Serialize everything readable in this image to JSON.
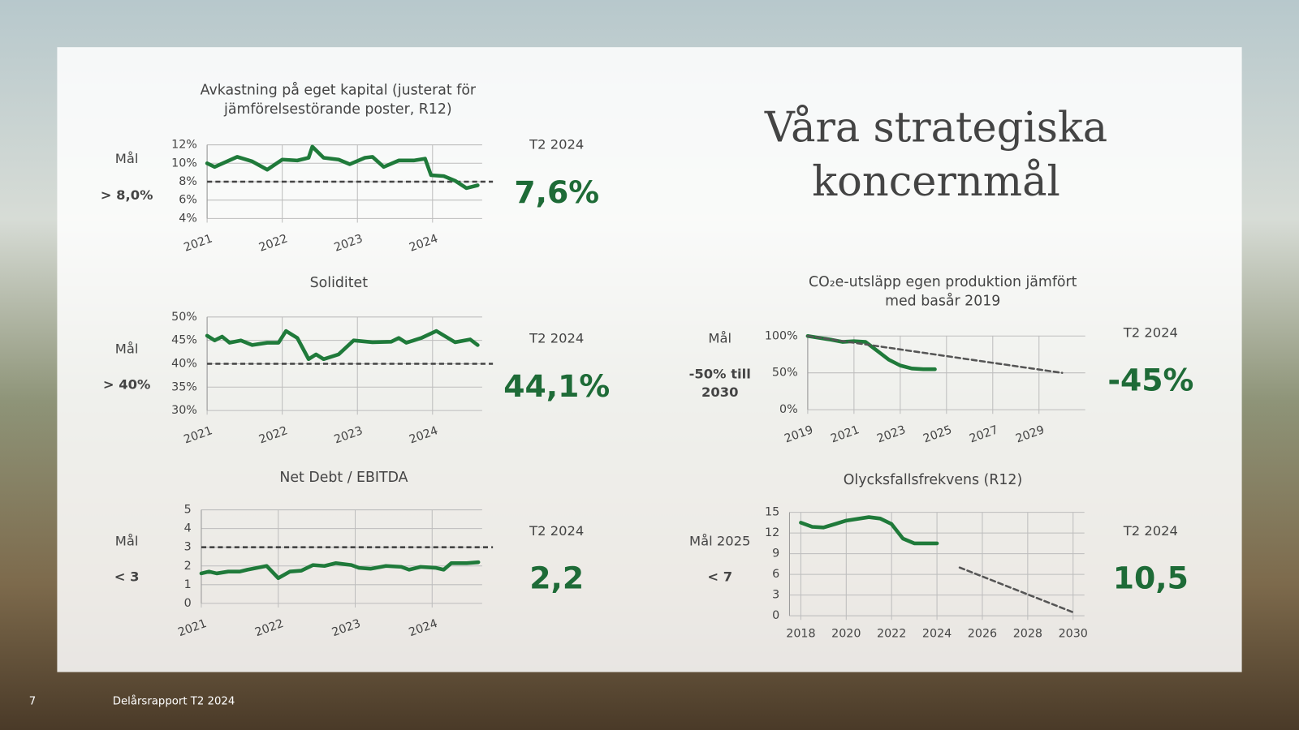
{
  "title": "Våra strategiska koncernmål",
  "footer": {
    "page": "7",
    "text": "Delårsrapport T2 2024"
  },
  "chart_data": [
    {
      "type": "line",
      "title": "Avkastning på eget kapital (justerat för jämförelsestörande poster, R12)",
      "goal_label": "Mål",
      "goal": "> 8,0%",
      "period": "T2 2024",
      "kpi": "7,6%",
      "xlim": [
        2021,
        2024.66
      ],
      "xticks": [
        2021,
        2022,
        2023,
        2024
      ],
      "ylim": [
        4,
        12
      ],
      "yticks": [
        {
          "value": 4,
          "label": "4%"
        },
        {
          "value": 6,
          "label": "6%"
        },
        {
          "value": 8,
          "label": "8%"
        },
        {
          "value": 10,
          "label": "10%"
        },
        {
          "value": 12,
          "label": "12%"
        }
      ],
      "target": 8,
      "series": [
        {
          "color": "#1f7a3a",
          "x": [
            2021.0,
            2021.1,
            2021.4,
            2021.6,
            2021.8,
            2022.0,
            2022.2,
            2022.35,
            2022.4,
            2022.55,
            2022.75,
            2022.9,
            2023.1,
            2023.2,
            2023.35,
            2023.55,
            2023.75,
            2023.9,
            2023.98,
            2024.15,
            2024.3,
            2024.45,
            2024.6
          ],
          "values": [
            10,
            9.6,
            10.7,
            10.2,
            9.3,
            10.4,
            10.3,
            10.6,
            11.8,
            10.6,
            10.4,
            9.9,
            10.6,
            10.7,
            9.6,
            10.3,
            10.3,
            10.5,
            8.7,
            8.6,
            8.1,
            7.3,
            7.6
          ]
        }
      ]
    },
    {
      "type": "line",
      "title": "Soliditet",
      "goal_label": "Mål",
      "goal": "> 40%",
      "period": "T2 2024",
      "kpi": "44,1%",
      "xlim": [
        2021,
        2024.66
      ],
      "xticks": [
        2021,
        2022,
        2023,
        2024
      ],
      "ylim": [
        30,
        50
      ],
      "yticks": [
        {
          "value": 30,
          "label": "30%"
        },
        {
          "value": 35,
          "label": "35%"
        },
        {
          "value": 40,
          "label": "40%"
        },
        {
          "value": 45,
          "label": "45%"
        },
        {
          "value": 50,
          "label": "50%"
        }
      ],
      "target": 40,
      "series": [
        {
          "color": "#1f7a3a",
          "x": [
            2021.0,
            2021.1,
            2021.2,
            2021.3,
            2021.45,
            2021.6,
            2021.8,
            2021.95,
            2022.05,
            2022.2,
            2022.35,
            2022.45,
            2022.55,
            2022.75,
            2022.95,
            2023.2,
            2023.45,
            2023.55,
            2023.65,
            2023.85,
            2024.05,
            2024.3,
            2024.5,
            2024.6
          ],
          "values": [
            46,
            45,
            45.8,
            44.5,
            45,
            44,
            44.5,
            44.5,
            47,
            45.5,
            41,
            42,
            41,
            42,
            45,
            44.6,
            44.7,
            45.5,
            44.5,
            45.5,
            47,
            44.6,
            45.2,
            44
          ]
        }
      ]
    },
    {
      "type": "line",
      "title": "Net Debt / EBITDA",
      "goal_label": "Mål",
      "goal": "< 3",
      "period": "T2 2024",
      "kpi": "2,2",
      "xlim": [
        2021,
        2024.65
      ],
      "xticks": [
        2021,
        2022,
        2023,
        2024
      ],
      "ylim": [
        0,
        5
      ],
      "yticks": [
        0,
        1,
        2,
        3,
        4,
        5
      ],
      "target": 3,
      "series": [
        {
          "color": "#1f7a3a",
          "x": [
            2021.0,
            2021.1,
            2021.2,
            2021.35,
            2021.5,
            2021.6,
            2021.85,
            2022.0,
            2022.15,
            2022.3,
            2022.45,
            2022.6,
            2022.75,
            2022.95,
            2023.05,
            2023.2,
            2023.4,
            2023.6,
            2023.7,
            2023.85,
            2024.05,
            2024.15,
            2024.25,
            2024.45,
            2024.6
          ],
          "values": [
            1.6,
            1.7,
            1.6,
            1.7,
            1.7,
            1.8,
            2.0,
            1.35,
            1.7,
            1.75,
            2.05,
            2.0,
            2.15,
            2.05,
            1.9,
            1.85,
            2.0,
            1.95,
            1.8,
            1.95,
            1.9,
            1.8,
            2.15,
            2.15,
            2.2
          ]
        }
      ]
    },
    {
      "type": "line",
      "title": "CO₂e-utsläpp egen produktion jämfört med basår 2019",
      "goal_label": "Mål",
      "goal": "-50% till 2030",
      "period": "T2 2024",
      "kpi": "-45%",
      "xlim": [
        2019,
        2031
      ],
      "xticks": [
        2019,
        2021,
        2023,
        2025,
        2027,
        2029
      ],
      "ylim": [
        0,
        100
      ],
      "yticks": [
        {
          "value": 0,
          "label": "0%"
        },
        {
          "value": 50,
          "label": "50%"
        },
        {
          "value": 100,
          "label": "100%"
        }
      ],
      "series": [
        {
          "color": "#1f7a3a",
          "x": [
            2019,
            2020,
            2020.5,
            2021,
            2021.5,
            2022,
            2022.5,
            2023,
            2023.5,
            2024,
            2024.5
          ],
          "values": [
            100,
            95,
            92,
            93,
            92,
            80,
            68,
            60,
            56,
            55,
            55
          ]
        },
        {
          "color": "#555555",
          "dash": true,
          "x": [
            2019,
            2030
          ],
          "values": [
            100,
            50
          ]
        }
      ]
    },
    {
      "type": "line",
      "title": "Olycksfallsfrekvens (R12)",
      "goal_label": "Mål 2025",
      "goal": "< 7",
      "period": "T2 2024",
      "kpi": "10,5",
      "xlim": [
        2017.5,
        2030.5
      ],
      "xticks": [
        2018,
        2020,
        2022,
        2024,
        2026,
        2028,
        2030
      ],
      "ylim": [
        0,
        15
      ],
      "yticks": [
        0,
        3,
        6,
        9,
        12,
        15
      ],
      "series": [
        {
          "color": "#1f7a3a",
          "x": [
            2018,
            2018.5,
            2019,
            2019.5,
            2020,
            2021,
            2021.5,
            2022,
            2022.5,
            2023,
            2023.5,
            2024
          ],
          "values": [
            13.5,
            12.9,
            12.8,
            13.3,
            13.8,
            14.3,
            14.1,
            13.3,
            11.2,
            10.5,
            10.5,
            10.5
          ]
        },
        {
          "color": "#555555",
          "dash": true,
          "x": [
            2025,
            2030
          ],
          "values": [
            7,
            0.5
          ]
        }
      ]
    }
  ]
}
